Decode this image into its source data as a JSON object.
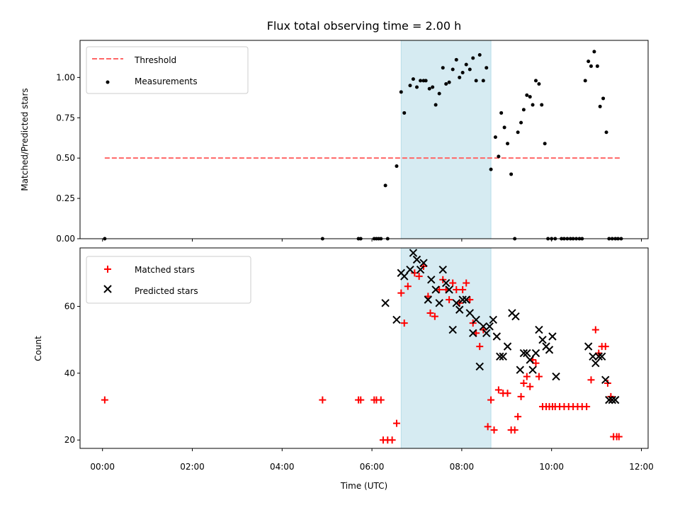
{
  "chart_data": [
    {
      "type": "scatter",
      "title": "Flux total observing time = 2.00 h",
      "xlabel": "",
      "ylabel": "Matched/Predicted stars",
      "xlim": [
        -0.5,
        12.15
      ],
      "ylim": [
        0.0,
        1.23
      ],
      "yticks": [
        0.0,
        0.25,
        0.5,
        0.75,
        1.0
      ],
      "ytick_labels": [
        "0.00",
        "0.25",
        "0.50",
        "0.75",
        "1.00"
      ],
      "shaded_interval": [
        6.65,
        8.65
      ],
      "shaded_color": "#add8e6",
      "threshold": {
        "name": "Threshold",
        "y": 0.5,
        "x_range": [
          0.05,
          11.55
        ],
        "color": "#ff6666",
        "style": "dashed"
      },
      "legend": {
        "position": "top-left",
        "entries": [
          "Threshold",
          "Measurements"
        ]
      },
      "series": [
        {
          "name": "Measurements",
          "color": "#000000",
          "x": [
            0.05,
            4.9,
            5.7,
            5.75,
            6.05,
            6.1,
            6.15,
            6.2,
            6.3,
            6.35,
            6.55,
            6.65,
            6.72,
            6.85,
            6.92,
            7.0,
            7.08,
            7.15,
            7.2,
            7.28,
            7.35,
            7.42,
            7.5,
            7.58,
            7.65,
            7.72,
            7.8,
            7.88,
            7.95,
            8.02,
            8.1,
            8.18,
            8.25,
            8.32,
            8.4,
            8.48,
            8.55,
            8.65,
            8.75,
            8.82,
            8.88,
            8.95,
            9.02,
            9.1,
            9.18,
            9.25,
            9.32,
            9.38,
            9.45,
            9.52,
            9.58,
            9.65,
            9.72,
            9.78,
            9.85,
            9.92,
            10.0,
            10.08,
            10.22,
            10.28,
            10.35,
            10.42,
            10.48,
            10.55,
            10.62,
            10.68,
            10.75,
            10.82,
            10.88,
            10.95,
            11.02,
            11.08,
            11.15,
            11.22,
            11.28,
            11.35,
            11.42,
            11.48,
            11.55
          ],
          "y": [
            0.0,
            0.0,
            0.0,
            0.0,
            0.0,
            0.0,
            0.0,
            0.0,
            0.33,
            0.0,
            0.45,
            0.91,
            0.78,
            0.95,
            0.99,
            0.94,
            0.98,
            0.98,
            0.98,
            0.93,
            0.94,
            0.83,
            0.9,
            1.06,
            0.96,
            0.97,
            1.05,
            1.11,
            1.0,
            1.03,
            1.08,
            1.05,
            1.12,
            0.98,
            1.14,
            0.98,
            1.06,
            0.43,
            0.63,
            0.51,
            0.78,
            0.69,
            0.59,
            0.4,
            0.0,
            0.66,
            0.72,
            0.8,
            0.89,
            0.88,
            0.83,
            0.98,
            0.96,
            0.83,
            0.59,
            0.0,
            0.0,
            0.0,
            0.0,
            0.0,
            0.0,
            0.0,
            0.0,
            0.0,
            0.0,
            0.0,
            0.98,
            1.1,
            1.07,
            1.16,
            1.07,
            0.82,
            0.87,
            0.66,
            0.0,
            0.0,
            0.0,
            0.0,
            0.0
          ]
        }
      ]
    },
    {
      "type": "scatter",
      "title": "",
      "xlabel": "Time (UTC)",
      "ylabel": "Count",
      "xlim": [
        -0.5,
        12.15
      ],
      "ylim": [
        17.5,
        77.5
      ],
      "xticks": [
        0,
        2,
        4,
        6,
        8,
        10,
        12
      ],
      "xtick_labels": [
        "00:00",
        "02:00",
        "04:00",
        "06:00",
        "08:00",
        "10:00",
        "12:00"
      ],
      "yticks": [
        20,
        40,
        60
      ],
      "ytick_labels": [
        "20",
        "40",
        "60"
      ],
      "shaded_interval": [
        6.65,
        8.65
      ],
      "shaded_color": "#add8e6",
      "legend": {
        "position": "top-left",
        "entries": [
          "Matched stars",
          "Predicted stars"
        ]
      },
      "series": [
        {
          "name": "Matched stars",
          "marker": "+",
          "color": "#ff0000",
          "x": [
            0.05,
            4.9,
            5.7,
            5.75,
            6.05,
            6.1,
            6.2,
            6.25,
            6.35,
            6.45,
            6.55,
            6.65,
            6.72,
            6.8,
            6.95,
            7.05,
            7.15,
            7.25,
            7.3,
            7.4,
            7.5,
            7.58,
            7.65,
            7.72,
            7.8,
            7.88,
            7.95,
            8.02,
            8.1,
            8.18,
            8.25,
            8.32,
            8.4,
            8.48,
            8.58,
            8.65,
            8.72,
            8.82,
            8.92,
            9.02,
            9.1,
            9.18,
            9.25,
            9.32,
            9.38,
            9.45,
            9.52,
            9.58,
            9.65,
            9.72,
            9.8,
            9.88,
            9.95,
            10.02,
            10.08,
            10.18,
            10.28,
            10.38,
            10.48,
            10.58,
            10.68,
            10.78,
            10.88,
            10.98,
            11.05,
            11.12,
            11.2,
            11.25,
            11.32,
            11.38,
            11.45,
            11.5
          ],
          "y": [
            32,
            32,
            32,
            32,
            32,
            32,
            32,
            20,
            20,
            20,
            25,
            64,
            55,
            66,
            70,
            69,
            72,
            63,
            58,
            57,
            65,
            68,
            65,
            62,
            67,
            65,
            61,
            65,
            67,
            62,
            55,
            52,
            48,
            53,
            24,
            32,
            23,
            35,
            34,
            34,
            23,
            23,
            27,
            33,
            37,
            39,
            36,
            44,
            43,
            39,
            30,
            30,
            30,
            30,
            30,
            30,
            30,
            30,
            30,
            30,
            30,
            30,
            38,
            53,
            46,
            48,
            48,
            37,
            33,
            21,
            21,
            21
          ]
        },
        {
          "name": "Predicted stars",
          "marker": "x",
          "color": "#000000",
          "x": [
            6.3,
            6.55,
            6.65,
            6.72,
            6.85,
            6.92,
            7.0,
            7.08,
            7.15,
            7.25,
            7.32,
            7.42,
            7.5,
            7.58,
            7.65,
            7.72,
            7.8,
            7.88,
            7.95,
            8.02,
            8.1,
            8.18,
            8.25,
            8.32,
            8.4,
            8.48,
            8.55,
            8.62,
            8.7,
            8.78,
            8.85,
            8.92,
            9.02,
            9.12,
            9.2,
            9.3,
            9.38,
            9.45,
            9.52,
            9.58,
            9.65,
            9.72,
            9.8,
            9.88,
            9.95,
            10.02,
            10.1,
            10.82,
            10.92,
            10.98,
            11.05,
            11.12,
            11.2,
            11.28,
            11.35,
            11.42
          ],
          "y": [
            61,
            56,
            70,
            69,
            71,
            76,
            74,
            71,
            73,
            62,
            68,
            65,
            61,
            71,
            67,
            65,
            53,
            61,
            59,
            62,
            62,
            58,
            52,
            56,
            42,
            54,
            52,
            54,
            56,
            51,
            45,
            45,
            48,
            58,
            57,
            41,
            46,
            46,
            44,
            41,
            46,
            53,
            50,
            48,
            47,
            51,
            39,
            48,
            45,
            43,
            45,
            45,
            38,
            32,
            32,
            32
          ]
        }
      ]
    }
  ]
}
